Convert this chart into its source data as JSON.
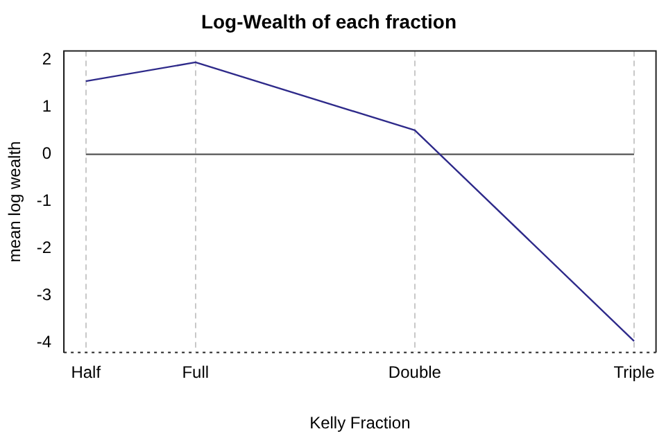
{
  "chart_data": {
    "type": "line",
    "title": "Log-Wealth of each fraction",
    "xlabel": "Kelly Fraction",
    "ylabel": "mean log wealth",
    "categories": [
      "Half",
      "Full",
      null,
      "Double",
      null,
      "Triple"
    ],
    "series": [
      {
        "color": "#2e2a8a",
        "values": [
          1.55,
          1.95,
          null,
          0.51,
          null,
          -3.96
        ]
      },
      {
        "color": "#555555",
        "values": [
          0,
          0,
          0,
          0,
          0,
          0
        ]
      }
    ],
    "ylim": [
      -4.2,
      2.19
    ],
    "yticks": [
      -4,
      -3,
      -2,
      -1,
      0,
      1,
      2
    ],
    "grid": "x",
    "marker": "none",
    "line_style": "solid",
    "legend": false,
    "ref_lines": [
      {
        "axis": "y",
        "value": -4.2,
        "label": null,
        "color": "#222222",
        "line_style": "dotted"
      }
    ]
  }
}
